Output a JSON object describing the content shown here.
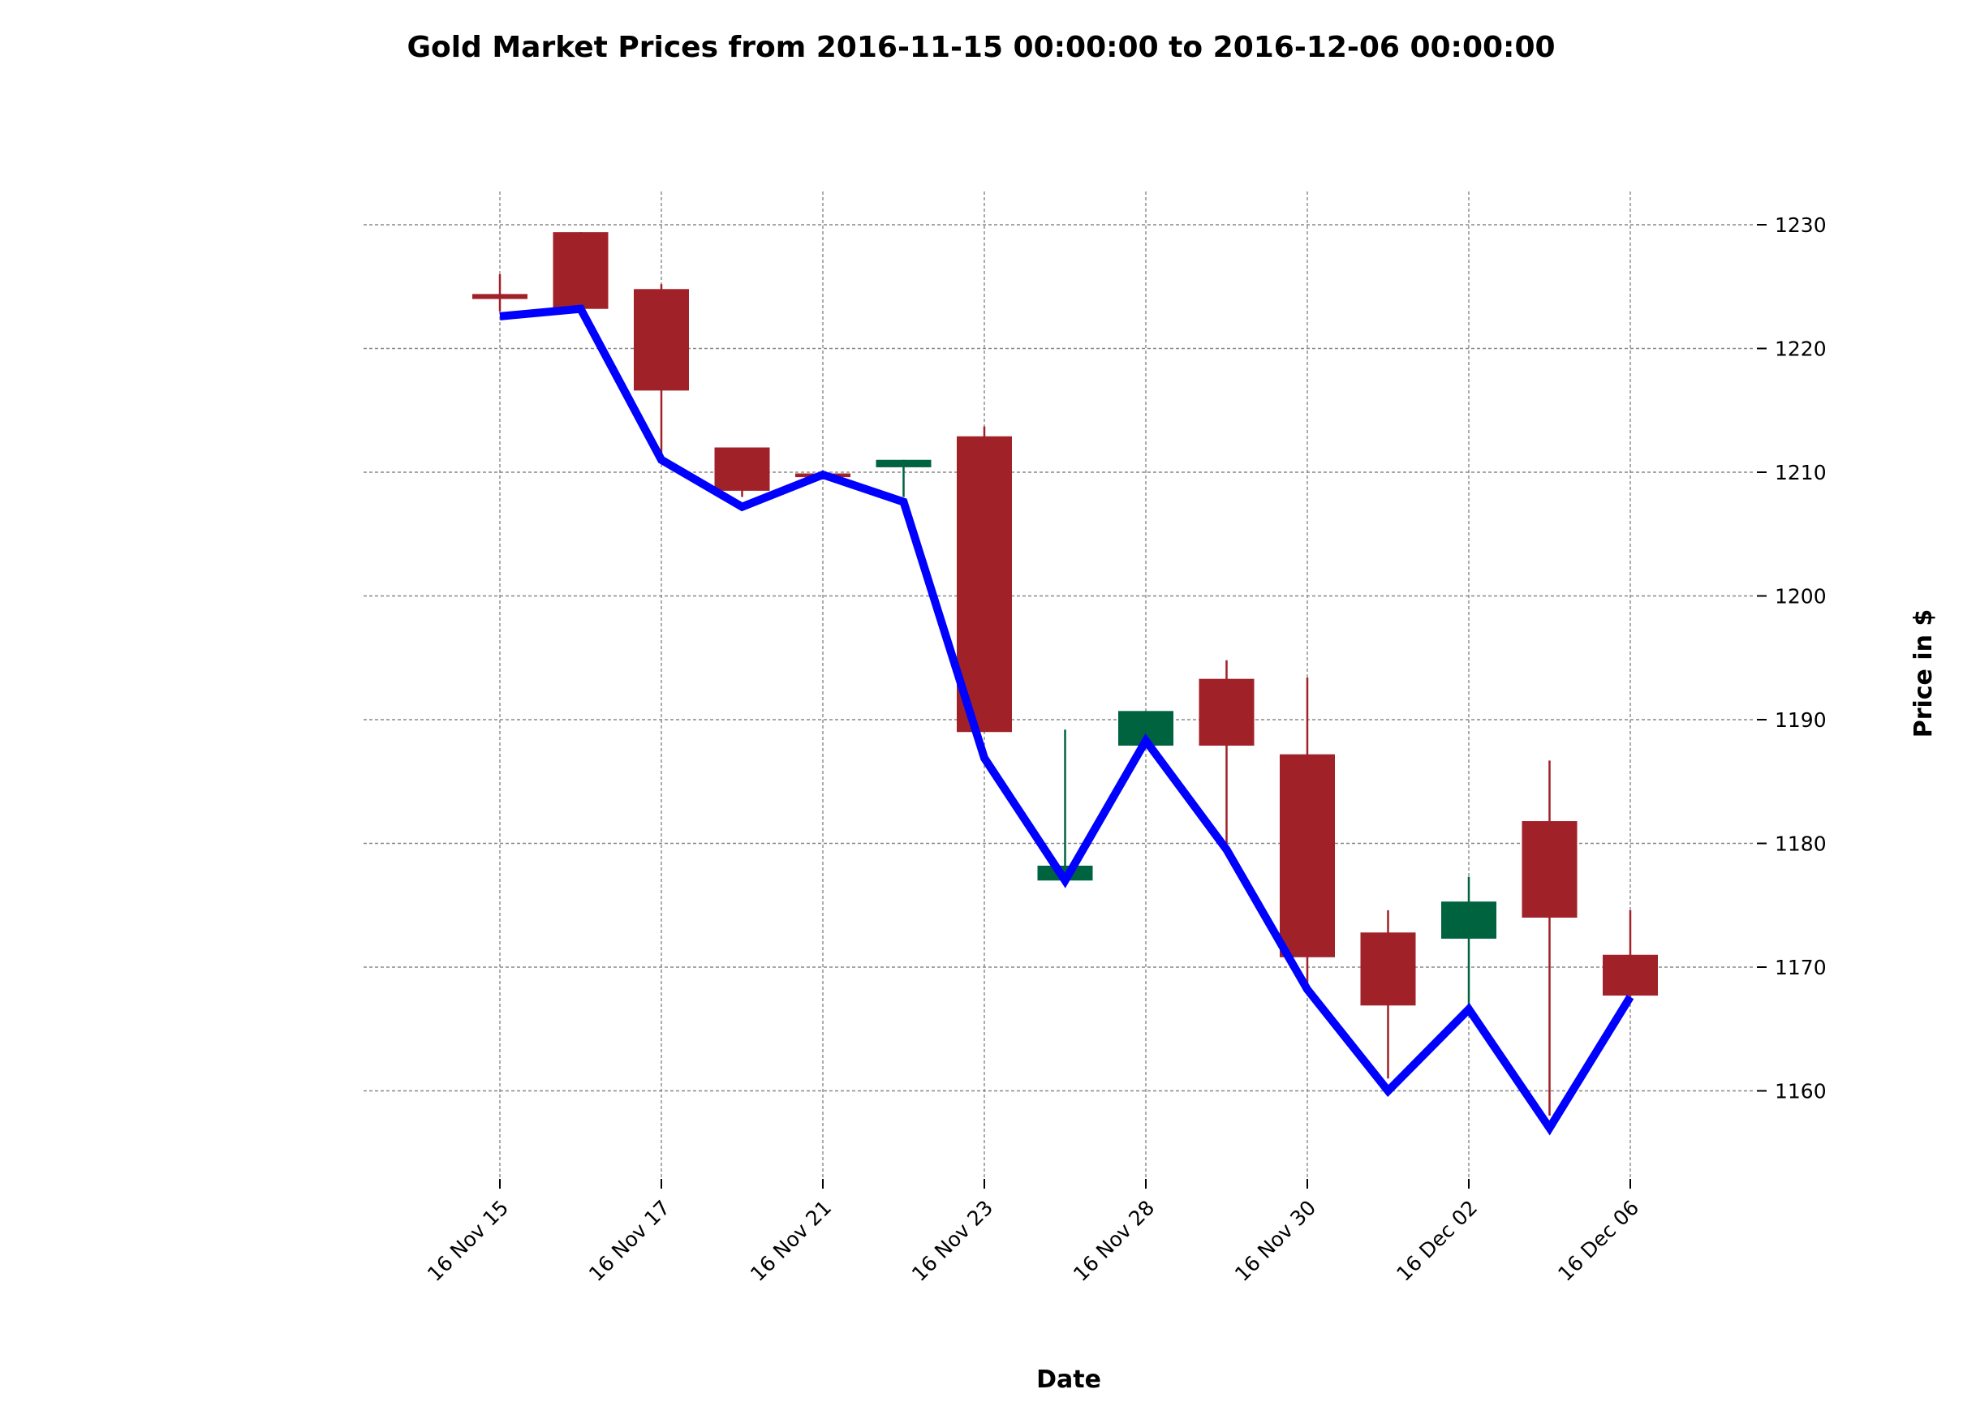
{
  "chart_data": {
    "type": "candlestick",
    "title": "Gold Market Prices from 2016-11-15 00:00:00 to 2016-12-06 00:00:00",
    "xlabel": "Date",
    "ylabel": "Price in $",
    "ylim": [
      1153,
      1233
    ],
    "yticks": [
      1160,
      1170,
      1180,
      1190,
      1200,
      1210,
      1220,
      1230
    ],
    "xtick_labels": [
      "16 Nov 15",
      "16 Nov 17",
      "16 Nov 21",
      "16 Nov 23",
      "16 Nov 28",
      "16 Nov 30",
      "16 Dec 02",
      "16 Dec 06"
    ],
    "xtick_positions": [
      0,
      2,
      4,
      6,
      8,
      10,
      12,
      14
    ],
    "grid": true,
    "colors": {
      "up": "#006340",
      "down": "#a02128",
      "line": "#0000ff",
      "grid": "#888888"
    },
    "candles": [
      {
        "open": 1224.4,
        "high": 1226.0,
        "low": 1223.0,
        "close": 1224.0
      },
      {
        "open": 1229.4,
        "high": 1229.4,
        "low": 1223.2,
        "close": 1223.2
      },
      {
        "open": 1224.8,
        "high": 1225.2,
        "low": 1211.5,
        "close": 1216.6
      },
      {
        "open": 1212.0,
        "high": 1212.0,
        "low": 1208.0,
        "close": 1208.5
      },
      {
        "open": 1209.9,
        "high": 1210.0,
        "low": 1209.4,
        "close": 1209.6
      },
      {
        "open": 1210.4,
        "high": 1211.0,
        "low": 1208.0,
        "close": 1211.0
      },
      {
        "open": 1212.9,
        "high": 1213.7,
        "low": 1189.0,
        "close": 1189.0
      },
      {
        "open": 1177.0,
        "high": 1189.2,
        "low": 1176.9,
        "close": 1178.2
      },
      {
        "open": 1187.9,
        "high": 1190.7,
        "low": 1187.9,
        "close": 1190.7
      },
      {
        "open": 1193.3,
        "high": 1194.8,
        "low": 1180.0,
        "close": 1187.9
      },
      {
        "open": 1187.2,
        "high": 1193.4,
        "low": 1168.5,
        "close": 1170.8
      },
      {
        "open": 1172.8,
        "high": 1174.6,
        "low": 1161.0,
        "close": 1166.9
      },
      {
        "open": 1172.3,
        "high": 1177.3,
        "low": 1166.5,
        "close": 1175.3
      },
      {
        "open": 1181.8,
        "high": 1186.7,
        "low": 1158.0,
        "close": 1174.0
      },
      {
        "open": 1171.0,
        "high": 1174.6,
        "low": 1167.6,
        "close": 1167.7
      }
    ],
    "line_series": {
      "values": [
        1222.6,
        1223.2,
        1211.0,
        1207.2,
        1209.8,
        1207.6,
        1186.9,
        1177.0,
        1188.3,
        1179.5,
        1168.2,
        1160.0,
        1166.6,
        1157.0,
        1167.6
      ]
    }
  }
}
